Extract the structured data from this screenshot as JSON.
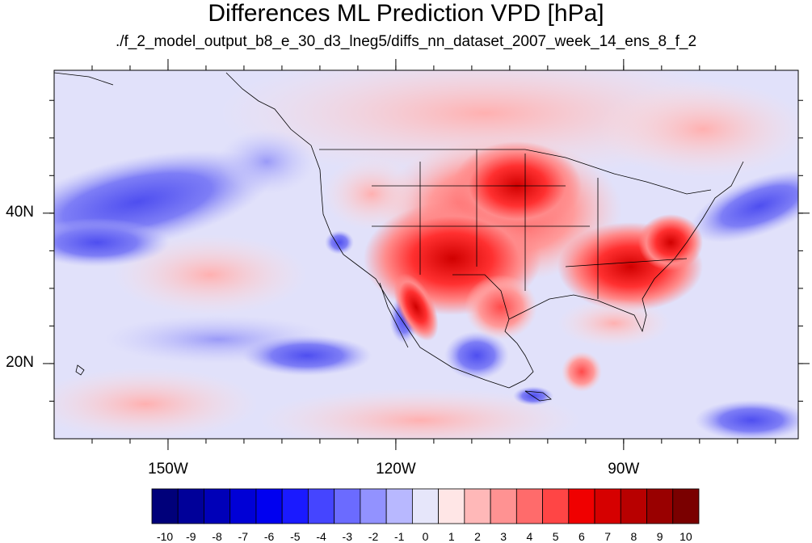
{
  "title": "Differences ML Prediction VPD [hPa]",
  "subtitle": "./f_2_model_output_b8_e_30_d3_lneg5/diffs_nn_dataset_2007_week_14_ens_8_f_2",
  "map": {
    "lon_range": [
      -165,
      -67
    ],
    "lat_range": [
      10,
      59
    ],
    "lon_ticks": [
      {
        "value": -150,
        "label": "150W"
      },
      {
        "value": -120,
        "label": "120W"
      },
      {
        "value": -90,
        "label": "90W"
      }
    ],
    "lat_ticks": [
      {
        "value": 40,
        "label": "40N"
      },
      {
        "value": 20,
        "label": "20N"
      }
    ]
  },
  "colorbar": {
    "labels": [
      "-10",
      "-9",
      "-8",
      "-7",
      "-6",
      "-5",
      "-4",
      "-3",
      "-2",
      "-1",
      "0",
      "1",
      "2",
      "3",
      "4",
      "5",
      "6",
      "7",
      "8",
      "9",
      "10"
    ],
    "colors": [
      "#00007a",
      "#000099",
      "#0000b8",
      "#0000d6",
      "#0000f0",
      "#1a1aff",
      "#4545ff",
      "#6b6bff",
      "#9292ff",
      "#b8b8ff",
      "#e6e6fa",
      "#ffe6e6",
      "#ffb8b8",
      "#ff9292",
      "#ff6b6b",
      "#ff4545",
      "#f00000",
      "#d60000",
      "#b80000",
      "#990000",
      "#7a0000"
    ]
  }
}
